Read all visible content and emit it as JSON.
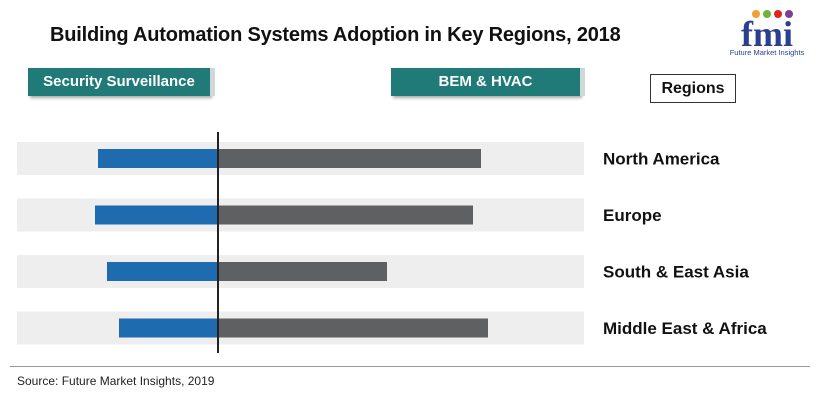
{
  "title": "Building Automation Systems Adoption in Key Regions, 2018",
  "logo": {
    "text": "fmi",
    "subtitle": "Future Market Insights"
  },
  "left_tag": "Security Surveillance",
  "right_tag": "BEM & HVAC",
  "regions_label": "Regions",
  "source": "Source: Future Market Insights, 2019",
  "colors": {
    "left_series": "#1f6bb0",
    "right_series": "#5f6062",
    "tag_bg": "#1f7a78",
    "row_bg": "#eeeeee",
    "axis": "#222222"
  },
  "chart_data": {
    "type": "bar",
    "orientation": "horizontal-diverging",
    "title": "Building Automation Systems Adoption in Key Regions, 2018",
    "categories": [
      "North America",
      "Europe",
      "South & East Asia",
      "Middle East & Africa"
    ],
    "series": [
      {
        "name": "Security Surveillance",
        "direction": "left",
        "values": [
          120,
          123,
          111,
          99
        ]
      },
      {
        "name": "BEM & HVAC",
        "direction": "right",
        "values": [
          263,
          255,
          169,
          270
        ]
      }
    ],
    "xlim_left": [
      0,
      200
    ],
    "xlim_right": [
      0,
      366
    ],
    "xlabel": "",
    "ylabel": "Regions",
    "legend": "top"
  }
}
